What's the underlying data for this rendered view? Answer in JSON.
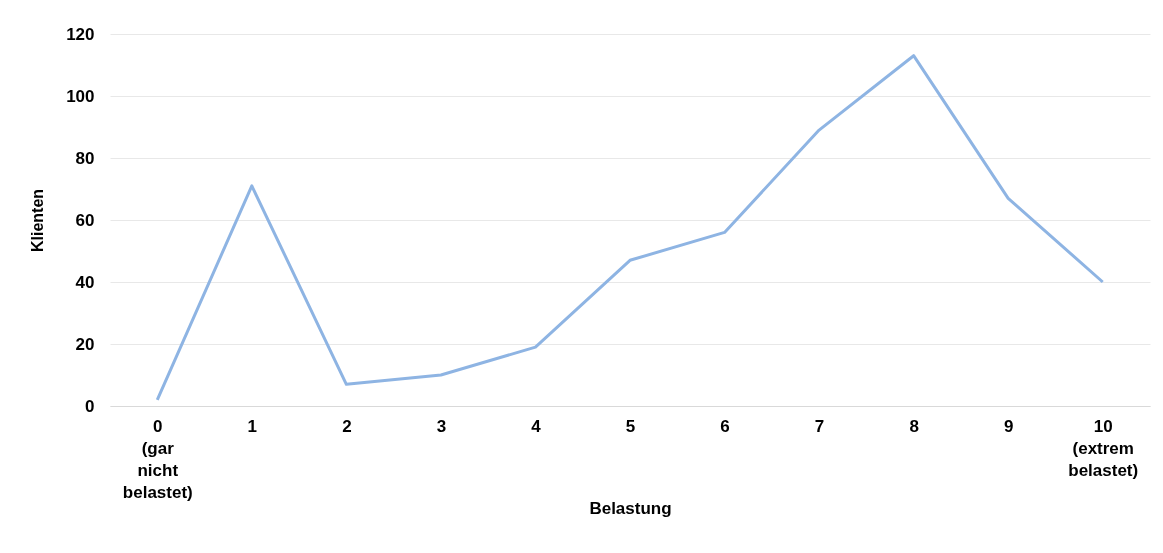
{
  "chart_data": {
    "type": "line",
    "xlabel": "Belastung",
    "ylabel": "Klienten",
    "categories": [
      "0 (gar nicht belastet)",
      "1",
      "2",
      "3",
      "4",
      "5",
      "6",
      "7",
      "8",
      "9",
      "10 (extrem belastet)"
    ],
    "series": [
      {
        "color": "#8eb4e3",
        "values": [
          2,
          71,
          7,
          10,
          19,
          47,
          56,
          89,
          113,
          67,
          40
        ]
      }
    ],
    "ylim": [
      0,
      120
    ],
    "yticks": [
      0,
      20,
      40,
      60,
      80,
      100,
      120
    ],
    "grid": "y",
    "marker": "none",
    "line_style": "solid"
  }
}
